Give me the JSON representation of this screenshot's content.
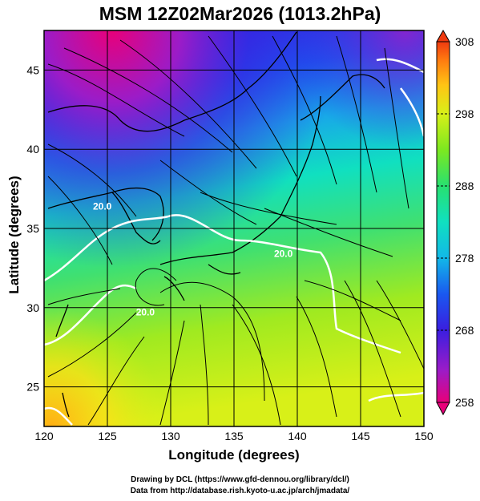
{
  "title": "MSM 12Z02Mar2026 (1013.2hPa)",
  "x_axis": {
    "label": "Longitude (degrees)",
    "range": [
      120,
      150
    ],
    "ticks": [
      120,
      125,
      130,
      135,
      140,
      145,
      150
    ]
  },
  "y_axis": {
    "label": "Latitude  (degrees)",
    "range": [
      22.5,
      47.5
    ],
    "ticks": [
      25,
      30,
      35,
      40,
      45
    ]
  },
  "colorbar": {
    "ticks": [
      "308",
      "298",
      "288",
      "278",
      "268",
      "258"
    ],
    "range": [
      258,
      308
    ],
    "colors": [
      "#e8007a",
      "#9b1cc8",
      "#3a1ee0",
      "#1a58f0",
      "#12b8e8",
      "#10e0c0",
      "#28e070",
      "#7ce820",
      "#d8f018",
      "#ffc414",
      "#ff7a10",
      "#f03a10"
    ]
  },
  "contour_labels": [
    {
      "text": "20.0",
      "lon": 124.6,
      "lat": 36.2
    },
    {
      "text": "20.0",
      "lon": 138.9,
      "lat": 33.2
    },
    {
      "text": "20.0",
      "lon": 128.0,
      "lat": 29.5
    }
  ],
  "credits": [
    "Drawing by DCL (https://www.gfd-dennou.org/library/dcl/)",
    "Data from http://database.rish.kyoto-u.ac.jp/arch/jmadata/"
  ]
}
